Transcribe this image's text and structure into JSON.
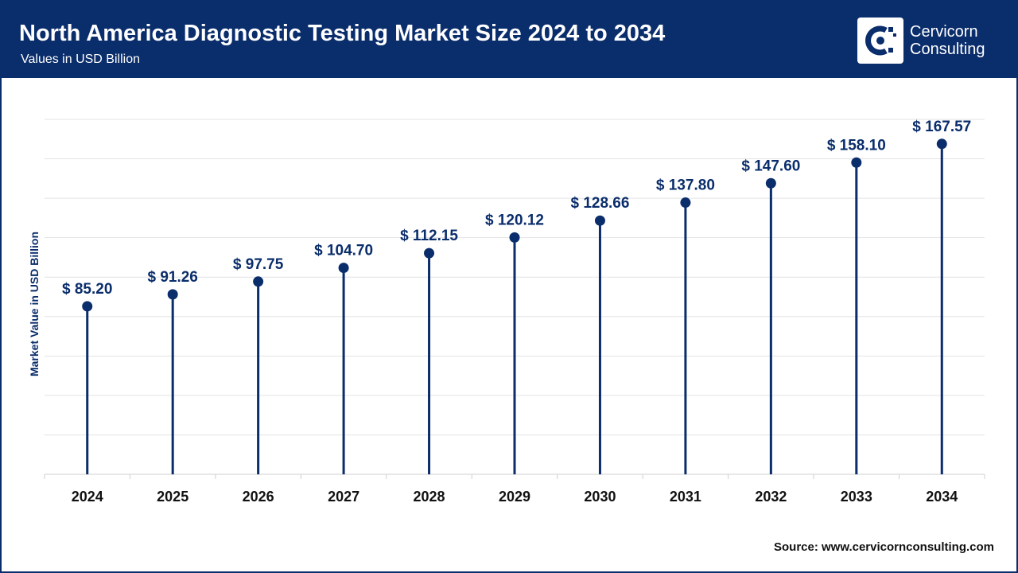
{
  "header": {
    "title": "North America Diagnostic Testing Market Size 2024 to 2034",
    "subtitle": "Values in USD Billion"
  },
  "logo": {
    "line1": "Cervicorn",
    "line2": "Consulting",
    "icon": "cervicorn-logo-icon"
  },
  "source": "Source: www.cervicornconsulting.com",
  "colors": {
    "brand": "#0a2d6b",
    "marker": "#0a2d6b",
    "grid": "#e3e3e3"
  },
  "chart_data": {
    "type": "scatter",
    "style": "lollipop",
    "categories": [
      "2024",
      "2025",
      "2026",
      "2027",
      "2028",
      "2029",
      "2030",
      "2031",
      "2032",
      "2033",
      "2034"
    ],
    "values": [
      85.2,
      91.26,
      97.75,
      104.7,
      112.15,
      120.12,
      128.66,
      137.8,
      147.6,
      158.1,
      167.57
    ],
    "data_labels": [
      "$ 85.20",
      "$ 91.26",
      "$ 97.75",
      "$ 104.70",
      "$ 112.15",
      "$ 120.12",
      "$ 128.66",
      "$ 137.80",
      "$ 147.60",
      "$ 158.10",
      "$ 167.57"
    ],
    "ylabel": "Market Value in USD Billion",
    "xlabel": "",
    "ylim": [
      0,
      180
    ],
    "grid": true,
    "y_tick_labels_shown": false
  }
}
